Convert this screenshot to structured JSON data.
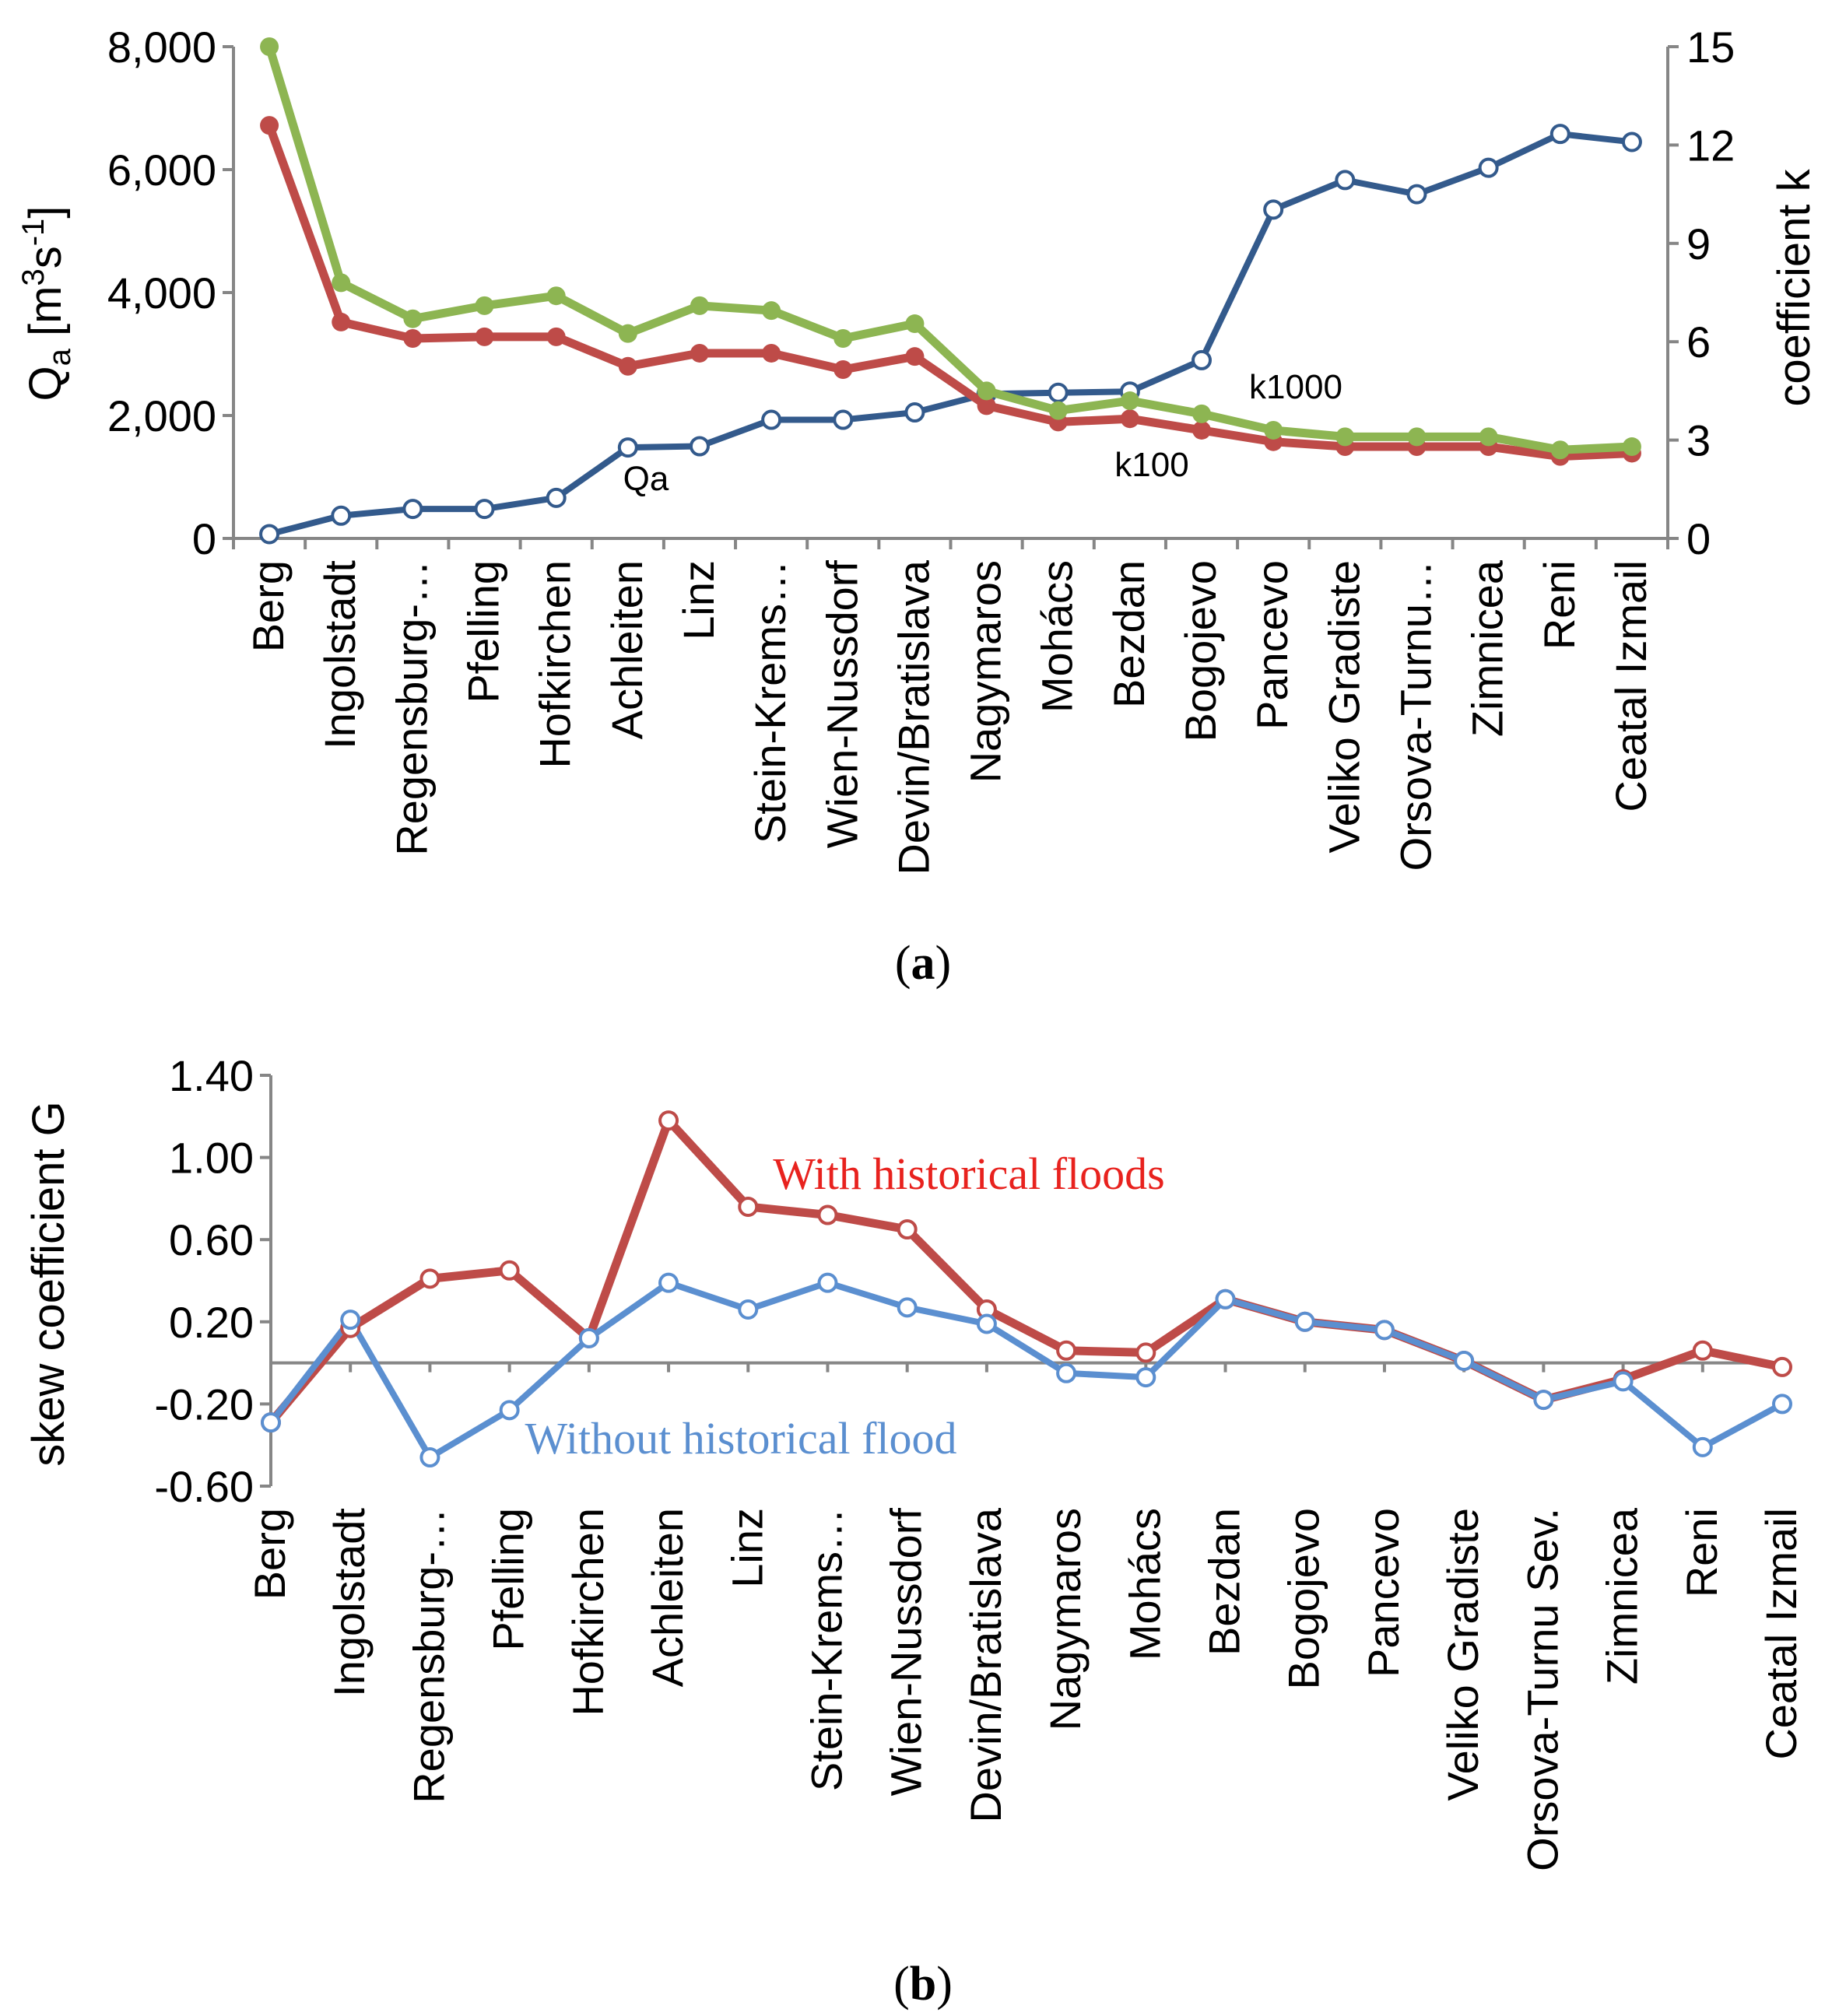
{
  "figure": {
    "panel_a_label": "a",
    "panel_b_label": "b"
  },
  "chart_data": [
    {
      "type": "line",
      "panel": "a",
      "categories": [
        "Berg",
        "Ingolstadt",
        "Regensburg-…",
        "Pfelling",
        "Hofkirchen",
        "Achleiten",
        "Linz",
        "Stein-Krems…",
        "Wien-Nussdorf",
        "Devin/Bratislava",
        "Nagymaros",
        "Mohács",
        "Bezdan",
        "Bogojevo",
        "Pancevo",
        "Veliko Gradiste",
        "Orsova-Turnu…",
        "Zimnicea",
        "Reni",
        "Ceatal Izmail"
      ],
      "y_left": {
        "label_main": "Q",
        "label_sub": "a",
        "label_rest": " [m",
        "label_sup1": "3",
        "label_mid": "s",
        "label_sup2": "-1",
        "label_end": "]",
        "ylim": [
          0,
          8000
        ],
        "ticks": [
          "0",
          "2,000",
          "4,000",
          "6,000",
          "8,000"
        ],
        "tick_values": [
          0,
          2000,
          4000,
          6000,
          8000
        ]
      },
      "y_right": {
        "label": "coefficient k",
        "ylim": [
          0,
          15
        ],
        "ticks": [
          "0",
          "3",
          "6",
          "9",
          "12",
          "15"
        ],
        "tick_values": [
          0,
          3,
          6,
          9,
          12,
          15
        ]
      },
      "series": [
        {
          "name": "Qa",
          "axis": "left",
          "color": "#335a8c",
          "marker": "hollow",
          "values": [
            70,
            370,
            480,
            480,
            660,
            1480,
            1500,
            1930,
            1930,
            2050,
            2350,
            2370,
            2390,
            2900,
            5350,
            5830,
            5600,
            6030,
            6580,
            6450
          ]
        },
        {
          "name": "k1000",
          "axis": "right",
          "color": "#8db552",
          "marker": "filled",
          "values": [
            15.0,
            7.8,
            6.7,
            7.1,
            7.4,
            6.25,
            7.1,
            6.95,
            6.1,
            6.55,
            4.5,
            3.9,
            4.2,
            3.8,
            3.3,
            3.1,
            3.1,
            3.1,
            2.7,
            2.8
          ]
        },
        {
          "name": "k100",
          "axis": "right",
          "color": "#be4b48",
          "marker": "filled",
          "values": [
            12.6,
            6.6,
            6.1,
            6.15,
            6.15,
            5.25,
            5.65,
            5.65,
            5.15,
            5.55,
            4.05,
            3.55,
            3.65,
            3.3,
            2.95,
            2.8,
            2.8,
            2.8,
            2.5,
            2.6
          ]
        }
      ],
      "annotations": {
        "qa": "Qa",
        "k100": "k100",
        "k1000": "k1000"
      }
    },
    {
      "type": "line",
      "panel": "b",
      "categories": [
        "Berg",
        "Ingolstadt",
        "Regensburg-…",
        "Pfelling",
        "Hofkirchen",
        "Achleiten",
        "Linz",
        "Stein-Krems…",
        "Wien-Nussdorf",
        "Devin/Bratislava",
        "Nagymaros",
        "Mohács",
        "Bezdan",
        "Bogojevo",
        "Pancevo",
        "Veliko Gradiste",
        "Orsova-Turnu Sev.",
        "Zimnicea",
        "Reni",
        "Ceatal Izmail"
      ],
      "y": {
        "label": "skew coefficient G",
        "ylim": [
          -0.6,
          1.4
        ],
        "ticks": [
          "-0.60",
          "-0.20",
          "0.20",
          "0.60",
          "1.00",
          "1.40"
        ],
        "tick_values": [
          -0.6,
          -0.2,
          0.2,
          0.6,
          1.0,
          1.4
        ]
      },
      "series": [
        {
          "name": "With historical  floods",
          "color": "#be4b48",
          "values": [
            -0.29,
            0.17,
            0.41,
            0.45,
            0.12,
            1.18,
            0.76,
            0.72,
            0.65,
            0.26,
            0.06,
            0.05,
            0.31,
            0.2,
            0.16,
            0.01,
            -0.18,
            -0.08,
            0.06,
            -0.02
          ]
        },
        {
          "name": "Without historical  flood",
          "color": "#5b8fd0",
          "values": [
            -0.29,
            0.21,
            -0.46,
            -0.23,
            0.12,
            0.39,
            0.26,
            0.39,
            0.27,
            0.19,
            -0.05,
            -0.07,
            0.31,
            0.2,
            0.16,
            0.01,
            -0.18,
            -0.09,
            -0.41,
            -0.2
          ]
        }
      ]
    }
  ]
}
